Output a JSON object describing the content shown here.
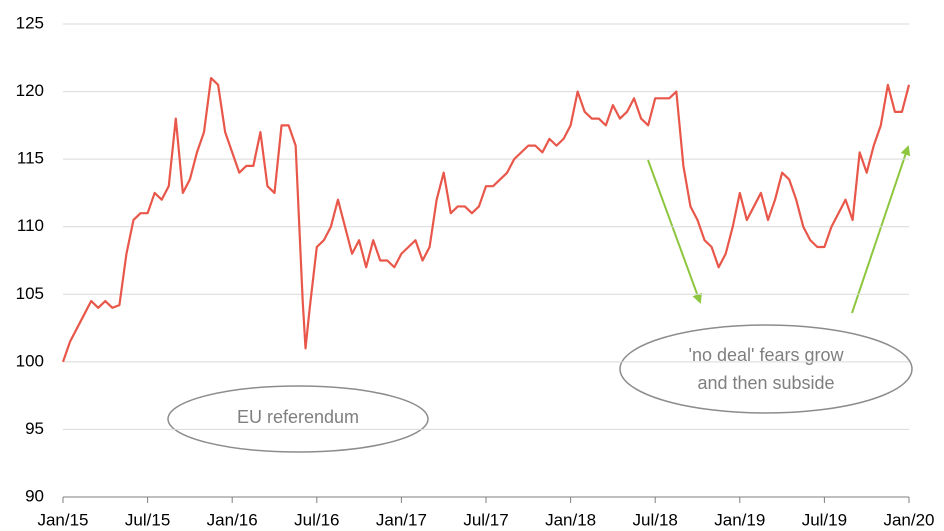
{
  "chart_data": {
    "type": "line",
    "x": [
      0,
      0.5,
      1,
      1.5,
      2,
      2.5,
      3,
      3.5,
      4,
      4.5,
      5,
      5.5,
      6,
      6.5,
      7,
      7.5,
      8,
      8.5,
      9,
      9.5,
      10,
      10.5,
      11,
      11.5,
      12,
      12.5,
      13,
      13.5,
      14,
      14.5,
      15,
      15.5,
      16,
      16.5,
      17,
      17.2,
      17.5,
      18,
      18.5,
      19,
      19.5,
      20,
      20.5,
      21,
      21.5,
      22,
      22.5,
      23,
      23.5,
      24,
      24.5,
      25,
      25.5,
      26,
      26.5,
      27,
      27.5,
      28,
      28.5,
      29,
      29.5,
      30,
      30.5,
      31,
      31.5,
      32,
      32.5,
      33,
      33.5,
      34,
      34.5,
      35,
      35.5,
      36,
      36.5,
      37,
      37.5,
      38,
      38.5,
      39,
      39.5,
      40,
      40.5,
      41,
      41.5,
      42,
      42.5,
      43,
      43.5,
      44,
      44.5,
      45,
      45.5,
      46,
      46.5,
      47,
      47.5,
      48,
      48.5,
      49,
      49.5,
      50,
      50.5,
      51,
      51.5,
      52,
      52.5,
      53,
      53.5,
      54,
      54.5,
      55,
      55.5,
      56,
      56.5,
      57,
      57.5,
      58,
      58.5,
      59,
      59.5,
      60
    ],
    "values": [
      100,
      101.5,
      102.5,
      103.5,
      104.5,
      104,
      104.5,
      104,
      104.2,
      108,
      110.5,
      111,
      111,
      112.5,
      112,
      113,
      118,
      112.5,
      113.5,
      115.5,
      117,
      121,
      120.5,
      117,
      115.5,
      114,
      114.5,
      114.5,
      117,
      113,
      112.5,
      117.5,
      117.5,
      116,
      104.5,
      101,
      104,
      108.5,
      109,
      110,
      112,
      110,
      108,
      109,
      107,
      109,
      107.5,
      107.5,
      107,
      108,
      108.5,
      109,
      107.5,
      108.5,
      112,
      114,
      111,
      111.5,
      111.5,
      111,
      111.5,
      113,
      113,
      113.5,
      114,
      115,
      115.5,
      116,
      116,
      115.5,
      116.5,
      116,
      116.5,
      117.5,
      120,
      118.5,
      118,
      118,
      117.5,
      119,
      118,
      118.5,
      119.5,
      118,
      117.5,
      119.5,
      119.5,
      119.5,
      120,
      114.5,
      111.5,
      110.5,
      109,
      108.5,
      107,
      108,
      110,
      112.5,
      110.5,
      111.5,
      112.5,
      110.5,
      112,
      114,
      113.5,
      112,
      110,
      109,
      108.5,
      108.5,
      110,
      111,
      112,
      110.5,
      115.5,
      114,
      116,
      117.5,
      120.5,
      118.5,
      118.5,
      120.5
    ],
    "color": "#e8574a",
    "xlim": [
      0,
      60
    ],
    "xticks": [
      {
        "value": 0,
        "label": "Jan/15"
      },
      {
        "value": 6,
        "label": "Jul/15"
      },
      {
        "value": 12,
        "label": "Jan/16"
      },
      {
        "value": 18,
        "label": "Jul/16"
      },
      {
        "value": 24,
        "label": "Jan/17"
      },
      {
        "value": 30,
        "label": "Jul/17"
      },
      {
        "value": 36,
        "label": "Jan/18"
      },
      {
        "value": 42,
        "label": "Jul/18"
      },
      {
        "value": 48,
        "label": "Jan/19"
      },
      {
        "value": 54,
        "label": "Jul/19"
      },
      {
        "value": 60,
        "label": "Jan/20"
      }
    ],
    "ylim": [
      90,
      125
    ],
    "yticks": [
      90,
      95,
      100,
      105,
      110,
      115,
      120,
      125
    ],
    "grid": true,
    "annotations": [
      "EU referendum",
      "'no deal' fears grow",
      "and then subside"
    ]
  }
}
